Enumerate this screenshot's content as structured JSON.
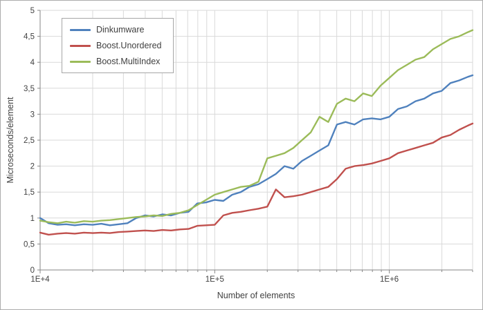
{
  "chart_data": {
    "type": "line",
    "title": "",
    "xlabel": "Number of elements",
    "ylabel": "Microseconds/element",
    "x_scale": "log",
    "xlim": [
      10000,
      3000000
    ],
    "ylim": [
      0,
      5
    ],
    "y_tick_step": 0.5,
    "y_tick_values": [
      0,
      0.5,
      1,
      1.5,
      2,
      2.5,
      3,
      3.5,
      4,
      4.5,
      5
    ],
    "y_tick_labels": [
      "0",
      "0,5",
      "1",
      "1,5",
      "2",
      "2,5",
      "3",
      "3,5",
      "4",
      "4,5",
      "5"
    ],
    "x_major_ticks": [
      10000,
      100000,
      1000000
    ],
    "x_tick_labels": [
      "1E+4",
      "1E+5",
      "1E+6"
    ],
    "grid": true,
    "legend_position": "top-left",
    "x": [
      10000,
      11200,
      12600,
      14100,
      15800,
      17800,
      20000,
      22400,
      25100,
      28200,
      31600,
      35500,
      39800,
      44700,
      50100,
      56200,
      63100,
      70800,
      79400,
      89100,
      100000,
      112000,
      126000,
      141000,
      158000,
      178000,
      200000,
      224000,
      251000,
      282000,
      316000,
      355000,
      398000,
      447000,
      501000,
      562000,
      631000,
      708000,
      794000,
      891000,
      1000000,
      1122000,
      1259000,
      1413000,
      1585000,
      1778000,
      1995000,
      2239000,
      2512000,
      2818000,
      3000000
    ],
    "series": [
      {
        "name": "Dinkumware",
        "color": "#4F81BD",
        "values": [
          1.0,
          0.9,
          0.87,
          0.88,
          0.86,
          0.88,
          0.87,
          0.89,
          0.86,
          0.88,
          0.9,
          1.0,
          1.05,
          1.03,
          1.07,
          1.05,
          1.1,
          1.12,
          1.28,
          1.3,
          1.35,
          1.33,
          1.45,
          1.5,
          1.6,
          1.65,
          1.75,
          1.85,
          2.0,
          1.95,
          2.1,
          2.2,
          2.3,
          2.4,
          2.8,
          2.85,
          2.8,
          2.9,
          2.92,
          2.9,
          2.95,
          3.1,
          3.15,
          3.25,
          3.3,
          3.4,
          3.45,
          3.6,
          3.65,
          3.72,
          3.75
        ]
      },
      {
        "name": "Boost.Unordered",
        "color": "#C0504D",
        "values": [
          0.72,
          0.68,
          0.7,
          0.71,
          0.7,
          0.72,
          0.71,
          0.72,
          0.71,
          0.73,
          0.74,
          0.75,
          0.76,
          0.75,
          0.77,
          0.76,
          0.78,
          0.79,
          0.85,
          0.86,
          0.87,
          1.05,
          1.1,
          1.12,
          1.15,
          1.18,
          1.22,
          1.55,
          1.4,
          1.42,
          1.45,
          1.5,
          1.55,
          1.6,
          1.75,
          1.95,
          2.0,
          2.02,
          2.05,
          2.1,
          2.15,
          2.25,
          2.3,
          2.35,
          2.4,
          2.45,
          2.55,
          2.6,
          2.7,
          2.78,
          2.82
        ]
      },
      {
        "name": "Boost.MultiIndex",
        "color": "#9BBB59",
        "values": [
          0.95,
          0.92,
          0.9,
          0.93,
          0.91,
          0.94,
          0.93,
          0.95,
          0.96,
          0.98,
          1.0,
          1.02,
          1.03,
          1.05,
          1.04,
          1.08,
          1.1,
          1.15,
          1.25,
          1.35,
          1.45,
          1.5,
          1.55,
          1.6,
          1.62,
          1.7,
          2.15,
          2.2,
          2.25,
          2.35,
          2.5,
          2.65,
          2.95,
          2.85,
          3.2,
          3.3,
          3.25,
          3.4,
          3.35,
          3.55,
          3.7,
          3.85,
          3.95,
          4.05,
          4.1,
          4.25,
          4.35,
          4.45,
          4.5,
          4.58,
          4.62
        ]
      }
    ],
    "colors": {
      "grid": "#D9D9D9",
      "axis": "#868686",
      "text": "#404040",
      "background": "#FFFFFF",
      "outer_border": "#ABABAB"
    }
  }
}
